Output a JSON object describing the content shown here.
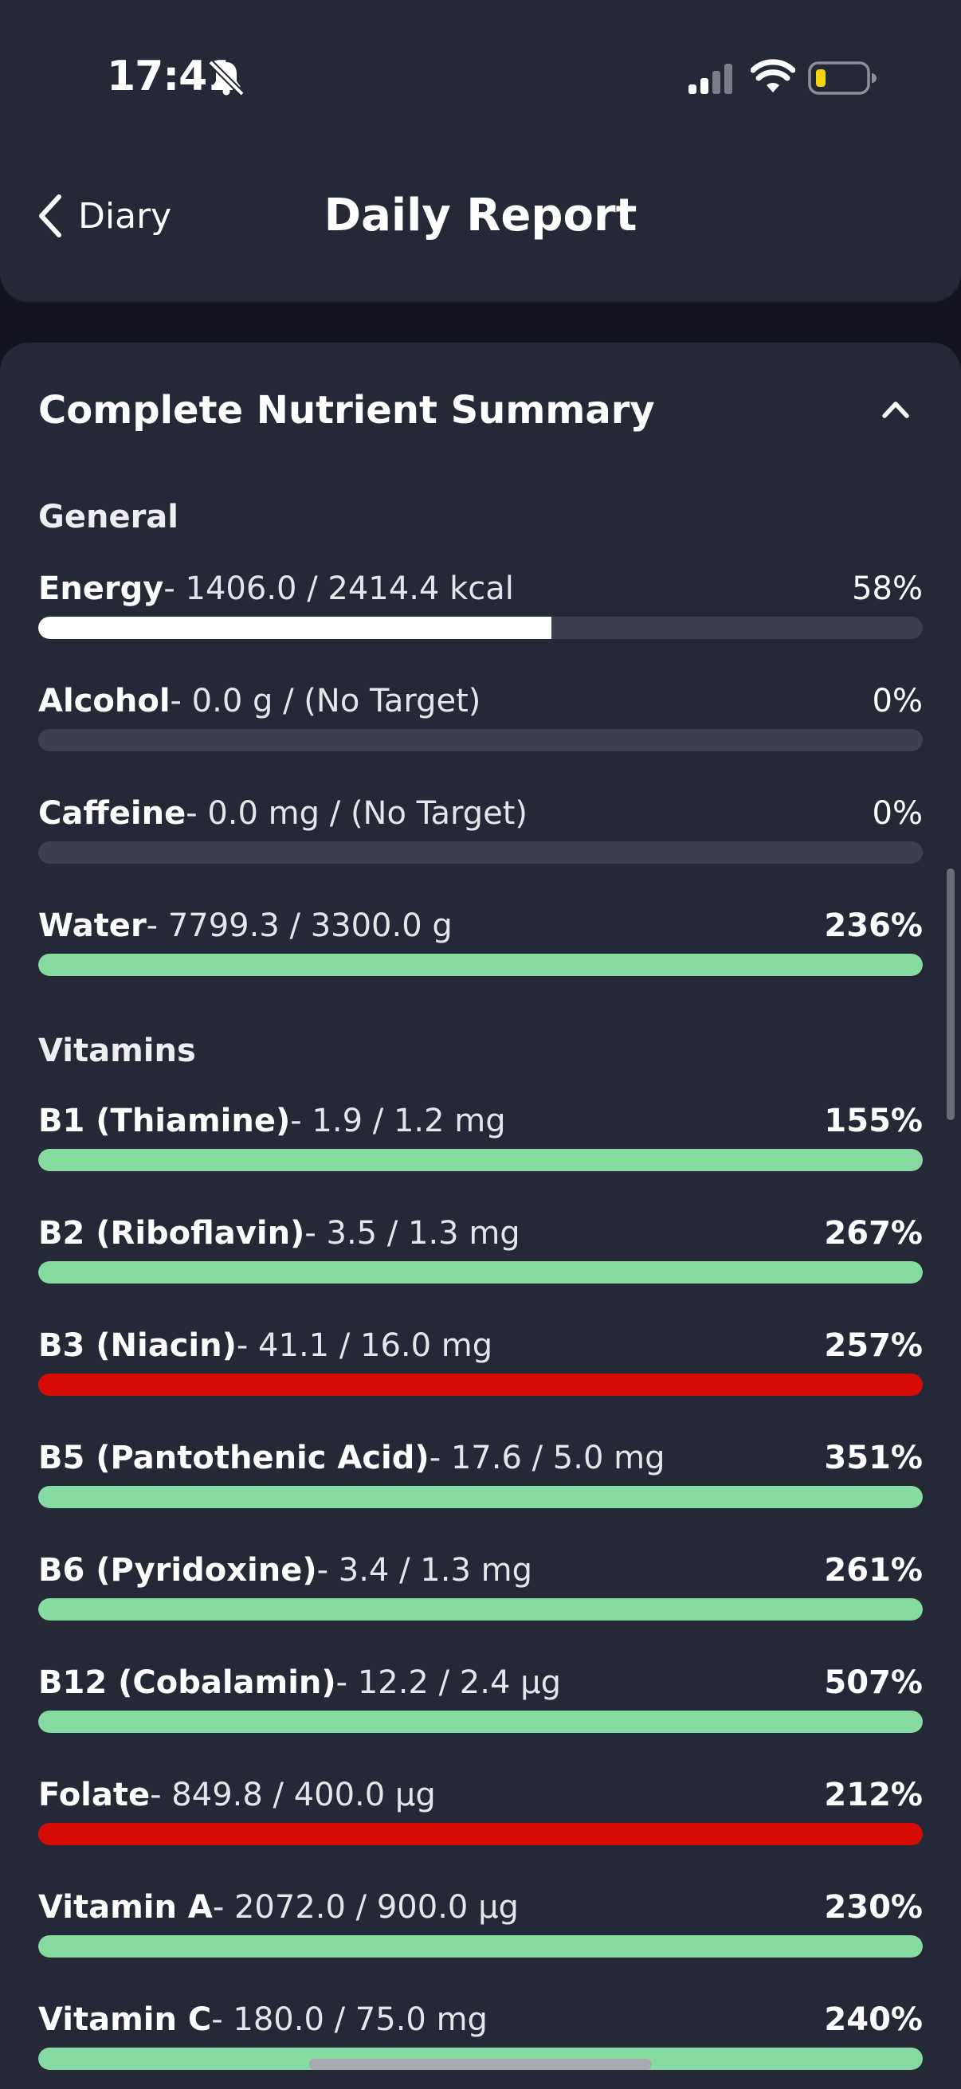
{
  "status_bar": {
    "time": "17:41",
    "icons": [
      "bell-slash-icon",
      "signal-icon",
      "wifi-icon",
      "battery-icon"
    ],
    "battery_color": "#f5d40f"
  },
  "nav": {
    "back_label": "Diary",
    "title": "Daily Report"
  },
  "card": {
    "title": "Complete Nutrient Summary",
    "expanded": true
  },
  "colors": {
    "bar_white": "#ffffff",
    "bar_green": "#86dba0",
    "bar_red": "#d60c04",
    "track": "#3e404f"
  },
  "sections": [
    {
      "heading": "General",
      "rows": [
        {
          "name": "Energy",
          "detail": "- 1406.0 / 2414.4 kcal",
          "pct": "58%",
          "fill": 0.58,
          "color": "#ffffff",
          "bold_pct": false
        },
        {
          "name": "Alcohol",
          "detail": "- 0.0 g / (No Target)",
          "pct": "0%",
          "fill": 0,
          "color": "#ffffff",
          "bold_pct": false
        },
        {
          "name": "Caffeine",
          "detail": "- 0.0 mg / (No Target)",
          "pct": "0%",
          "fill": 0,
          "color": "#ffffff",
          "bold_pct": false
        },
        {
          "name": "Water",
          "detail": "- 7799.3 / 3300.0 g",
          "pct": "236%",
          "fill": 1,
          "color": "#86dba0",
          "bold_pct": true
        }
      ]
    },
    {
      "heading": "Vitamins",
      "rows": [
        {
          "name": "B1 (Thiamine)",
          "detail": "- 1.9 / 1.2 mg",
          "pct": "155%",
          "fill": 1,
          "color": "#86dba0",
          "bold_pct": true
        },
        {
          "name": "B2 (Riboflavin)",
          "detail": "- 3.5 / 1.3 mg",
          "pct": "267%",
          "fill": 1,
          "color": "#86dba0",
          "bold_pct": true
        },
        {
          "name": "B3 (Niacin)",
          "detail": "- 41.1 / 16.0 mg",
          "pct": "257%",
          "fill": 1,
          "color": "#d60c04",
          "bold_pct": true
        },
        {
          "name": "B5 (Pantothenic Acid)",
          "detail": "- 17.6 / 5.0 mg",
          "pct": "351%",
          "fill": 1,
          "color": "#86dba0",
          "bold_pct": true
        },
        {
          "name": "B6 (Pyridoxine)",
          "detail": "- 3.4 / 1.3 mg",
          "pct": "261%",
          "fill": 1,
          "color": "#86dba0",
          "bold_pct": true
        },
        {
          "name": "B12 (Cobalamin)",
          "detail": "- 12.2 / 2.4 µg",
          "pct": "507%",
          "fill": 1,
          "color": "#86dba0",
          "bold_pct": true
        },
        {
          "name": "Folate",
          "detail": "- 849.8 / 400.0 µg",
          "pct": "212%",
          "fill": 1,
          "color": "#d60c04",
          "bold_pct": true
        },
        {
          "name": "Vitamin A",
          "detail": "- 2072.0 / 900.0 µg",
          "pct": "230%",
          "fill": 1,
          "color": "#86dba0",
          "bold_pct": true
        },
        {
          "name": "Vitamin C",
          "detail": "- 180.0 / 75.0 mg",
          "pct": "240%",
          "fill": 1,
          "color": "#86dba0",
          "bold_pct": true
        }
      ]
    }
  ]
}
